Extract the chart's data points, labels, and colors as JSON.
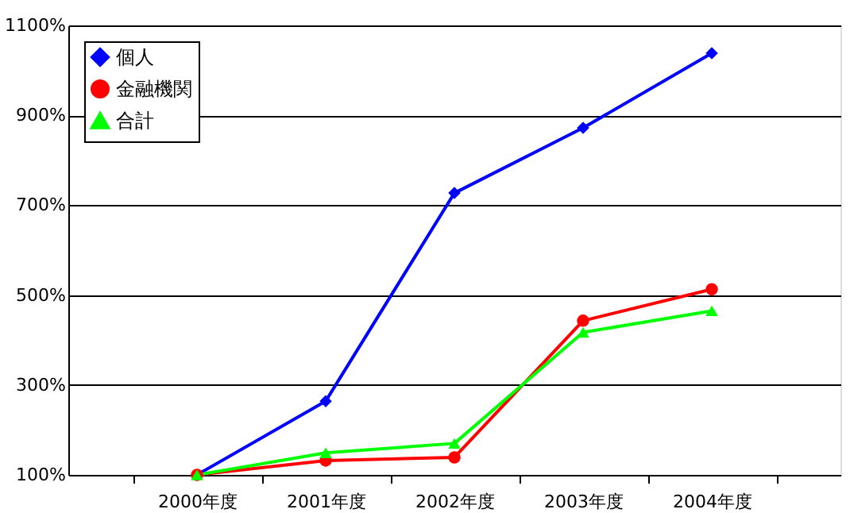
{
  "chart_data": {
    "type": "line",
    "categories": [
      "2000年度",
      "2001年度",
      "2002年度",
      "2003年度",
      "2004年度"
    ],
    "series": [
      {
        "name": "個人",
        "color": "#0000ff",
        "marker": "diamond",
        "values": [
          100,
          264,
          727,
          872,
          1038
        ]
      },
      {
        "name": "金融機関",
        "color": "#ff0000",
        "marker": "circle",
        "values": [
          100,
          132,
          139,
          443,
          513
        ]
      },
      {
        "name": "合計",
        "color": "#00ff00",
        "marker": "triangle",
        "values": [
          100,
          149,
          170,
          417,
          465
        ]
      }
    ],
    "ylim": [
      100,
      1100
    ],
    "yticks": [
      {
        "value": 100,
        "label": "100%"
      },
      {
        "value": 300,
        "label": "300%"
      },
      {
        "value": 500,
        "label": "500%"
      },
      {
        "value": 700,
        "label": "700%"
      },
      {
        "value": 900,
        "label": "900%"
      },
      {
        "value": 1100,
        "label": "1100%"
      }
    ],
    "grid": "y",
    "legend": "top left",
    "line_style": "solid"
  }
}
